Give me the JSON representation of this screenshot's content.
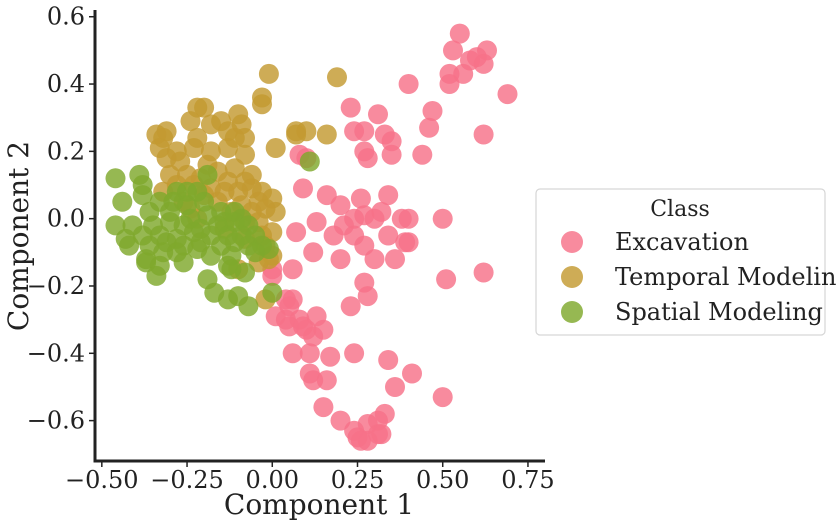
{
  "chart_data": {
    "type": "scatter",
    "title": "",
    "xlabel": "Component 1",
    "ylabel": "Component 2",
    "xlim": [
      -0.52,
      0.8
    ],
    "ylim": [
      -0.72,
      0.62
    ],
    "xticks": [
      -0.5,
      -0.25,
      0.0,
      0.25,
      0.5,
      0.75
    ],
    "xtick_labels": [
      "−0.50",
      "−0.25",
      "0.00",
      "0.25",
      "0.50",
      "0.75"
    ],
    "yticks": [
      -0.6,
      -0.4,
      -0.2,
      0.0,
      0.2,
      0.4,
      0.6
    ],
    "ytick_labels": [
      "−0.6",
      "−0.4",
      "−0.2",
      "0.0",
      "0.2",
      "0.4",
      "0.6"
    ],
    "grid": false,
    "legend": {
      "title": "Class",
      "placement": "right"
    },
    "series": [
      {
        "name": "Excavation",
        "color": "#f77189",
        "points": [
          [
            0.55,
            0.55
          ],
          [
            0.53,
            0.5
          ],
          [
            0.6,
            0.48
          ],
          [
            0.63,
            0.5
          ],
          [
            0.62,
            0.46
          ],
          [
            0.58,
            0.47
          ],
          [
            0.56,
            0.43
          ],
          [
            0.52,
            0.43
          ],
          [
            0.52,
            0.4
          ],
          [
            0.69,
            0.37
          ],
          [
            0.4,
            0.4
          ],
          [
            0.47,
            0.32
          ],
          [
            0.46,
            0.27
          ],
          [
            0.44,
            0.19
          ],
          [
            0.62,
            0.25
          ],
          [
            0.23,
            0.33
          ],
          [
            0.31,
            0.31
          ],
          [
            0.24,
            0.26
          ],
          [
            0.27,
            0.26
          ],
          [
            0.33,
            0.25
          ],
          [
            0.35,
            0.23
          ],
          [
            0.27,
            0.2
          ],
          [
            0.28,
            0.18
          ],
          [
            0.35,
            0.19
          ],
          [
            0.08,
            0.19
          ],
          [
            0.1,
            0.18
          ],
          [
            0.09,
            0.09
          ],
          [
            0.16,
            0.07
          ],
          [
            0.26,
            0.06
          ],
          [
            0.34,
            0.07
          ],
          [
            0.2,
            0.04
          ],
          [
            0.32,
            0.02
          ],
          [
            0.27,
            0.01
          ],
          [
            0.24,
            0.0
          ],
          [
            0.3,
            0.0
          ],
          [
            0.38,
            0.0
          ],
          [
            0.4,
            0.0
          ],
          [
            0.5,
            0.0
          ],
          [
            0.13,
            -0.01
          ],
          [
            0.21,
            -0.02
          ],
          [
            0.07,
            -0.04
          ],
          [
            0.18,
            -0.05
          ],
          [
            0.24,
            -0.05
          ],
          [
            0.34,
            -0.05
          ],
          [
            0.39,
            -0.07
          ],
          [
            0.4,
            -0.07
          ],
          [
            0.27,
            -0.08
          ],
          [
            0.12,
            -0.1
          ],
          [
            0.2,
            -0.12
          ],
          [
            0.3,
            -0.12
          ],
          [
            0.36,
            -0.12
          ],
          [
            0.0,
            -0.15
          ],
          [
            0.06,
            -0.15
          ],
          [
            0.0,
            -0.17
          ],
          [
            0.51,
            -0.18
          ],
          [
            0.62,
            -0.16
          ],
          [
            0.27,
            -0.19
          ],
          [
            0.28,
            -0.23
          ],
          [
            0.06,
            -0.24
          ],
          [
            0.04,
            -0.24
          ],
          [
            0.05,
            -0.26
          ],
          [
            0.23,
            -0.26
          ],
          [
            0.01,
            -0.29
          ],
          [
            0.04,
            -0.3
          ],
          [
            0.08,
            -0.3
          ],
          [
            0.05,
            -0.32
          ],
          [
            0.09,
            -0.32
          ],
          [
            0.1,
            -0.33
          ],
          [
            0.12,
            -0.35
          ],
          [
            0.15,
            -0.33
          ],
          [
            0.13,
            -0.29
          ],
          [
            0.06,
            -0.4
          ],
          [
            0.11,
            -0.4
          ],
          [
            0.17,
            -0.41
          ],
          [
            0.24,
            -0.4
          ],
          [
            0.34,
            -0.42
          ],
          [
            0.41,
            -0.46
          ],
          [
            0.11,
            -0.46
          ],
          [
            0.12,
            -0.48
          ],
          [
            0.16,
            -0.48
          ],
          [
            0.36,
            -0.5
          ],
          [
            0.5,
            -0.53
          ],
          [
            0.15,
            -0.56
          ],
          [
            0.2,
            -0.6
          ],
          [
            0.28,
            -0.61
          ],
          [
            0.31,
            -0.6
          ],
          [
            0.33,
            -0.58
          ],
          [
            0.24,
            -0.63
          ],
          [
            0.25,
            -0.65
          ],
          [
            0.28,
            -0.66
          ],
          [
            0.31,
            -0.64
          ],
          [
            0.32,
            -0.64
          ],
          [
            0.26,
            -0.66
          ]
        ]
      },
      {
        "name": "Temporal Modeling",
        "color": "#c39a31",
        "points": [
          [
            -0.01,
            0.43
          ],
          [
            0.19,
            0.42
          ],
          [
            -0.03,
            0.36
          ],
          [
            -0.03,
            0.34
          ],
          [
            -0.22,
            0.33
          ],
          [
            -0.2,
            0.33
          ],
          [
            -0.1,
            0.31
          ],
          [
            -0.15,
            0.29
          ],
          [
            -0.24,
            0.29
          ],
          [
            -0.18,
            0.28
          ],
          [
            -0.09,
            0.28
          ],
          [
            -0.13,
            0.26
          ],
          [
            -0.34,
            0.25
          ],
          [
            -0.31,
            0.26
          ],
          [
            -0.32,
            0.24
          ],
          [
            -0.22,
            0.24
          ],
          [
            -0.11,
            0.24
          ],
          [
            -0.08,
            0.24
          ],
          [
            0.07,
            0.25
          ],
          [
            0.07,
            0.26
          ],
          [
            0.1,
            0.26
          ],
          [
            0.16,
            0.25
          ],
          [
            -0.33,
            0.21
          ],
          [
            -0.28,
            0.2
          ],
          [
            -0.23,
            0.21
          ],
          [
            -0.18,
            0.2
          ],
          [
            -0.13,
            0.21
          ],
          [
            -0.08,
            0.19
          ],
          [
            0.01,
            0.21
          ],
          [
            -0.31,
            0.18
          ],
          [
            -0.27,
            0.17
          ],
          [
            -0.19,
            0.16
          ],
          [
            -0.16,
            0.14
          ],
          [
            -0.11,
            0.15
          ],
          [
            -0.3,
            0.13
          ],
          [
            -0.25,
            0.13
          ],
          [
            -0.21,
            0.12
          ],
          [
            -0.13,
            0.11
          ],
          [
            -0.08,
            0.11
          ],
          [
            -0.06,
            0.13
          ],
          [
            -0.32,
            0.08
          ],
          [
            -0.28,
            0.1
          ],
          [
            -0.23,
            0.1
          ],
          [
            -0.18,
            0.09
          ],
          [
            -0.14,
            0.08
          ],
          [
            -0.1,
            0.08
          ],
          [
            -0.06,
            0.09
          ],
          [
            -0.03,
            0.08
          ],
          [
            -0.2,
            0.07
          ],
          [
            -0.26,
            0.05
          ],
          [
            -0.16,
            0.05
          ],
          [
            -0.09,
            0.04
          ],
          [
            -0.04,
            0.05
          ],
          [
            0.0,
            0.06
          ],
          [
            -0.24,
            0.03
          ],
          [
            -0.12,
            0.02
          ],
          [
            -0.06,
            0.02
          ],
          [
            -0.02,
            0.03
          ],
          [
            0.01,
            0.02
          ],
          [
            -0.22,
            0.0
          ],
          [
            -0.08,
            -0.01
          ],
          [
            -0.04,
            -0.01
          ],
          [
            -0.14,
            -0.03
          ],
          [
            -0.03,
            -0.05
          ],
          [
            0.0,
            -0.04
          ],
          [
            -0.08,
            -0.06
          ],
          [
            -0.02,
            -0.08
          ],
          [
            0.0,
            -0.11
          ],
          [
            -0.04,
            -0.13
          ],
          [
            -0.01,
            -0.12
          ],
          [
            -0.02,
            -0.24
          ],
          [
            -0.1,
            -0.15
          ]
        ]
      },
      {
        "name": "Spatial Modeling",
        "color": "#7fa82c",
        "points": [
          [
            0.11,
            0.17
          ],
          [
            -0.46,
            0.12
          ],
          [
            -0.39,
            0.13
          ],
          [
            -0.38,
            0.1
          ],
          [
            -0.28,
            0.08
          ],
          [
            -0.25,
            0.08
          ],
          [
            -0.22,
            0.08
          ],
          [
            -0.19,
            0.13
          ],
          [
            -0.44,
            0.05
          ],
          [
            -0.38,
            0.07
          ],
          [
            -0.33,
            0.05
          ],
          [
            -0.29,
            0.05
          ],
          [
            -0.25,
            0.04
          ],
          [
            -0.2,
            0.05
          ],
          [
            -0.15,
            0.02
          ],
          [
            -0.11,
            0.02
          ],
          [
            -0.36,
            0.02
          ],
          [
            -0.3,
            0.02
          ],
          [
            -0.24,
            0.0
          ],
          [
            -0.19,
            0.01
          ],
          [
            -0.14,
            -0.01
          ],
          [
            -0.09,
            0.0
          ],
          [
            -0.46,
            -0.02
          ],
          [
            -0.41,
            -0.02
          ],
          [
            -0.35,
            -0.02
          ],
          [
            -0.3,
            -0.01
          ],
          [
            -0.26,
            -0.02
          ],
          [
            -0.21,
            -0.03
          ],
          [
            -0.16,
            -0.02
          ],
          [
            -0.11,
            -0.01
          ],
          [
            -0.07,
            -0.02
          ],
          [
            -0.43,
            -0.06
          ],
          [
            -0.38,
            -0.05
          ],
          [
            -0.33,
            -0.05
          ],
          [
            -0.28,
            -0.06
          ],
          [
            -0.23,
            -0.04
          ],
          [
            -0.18,
            -0.05
          ],
          [
            -0.13,
            -0.05
          ],
          [
            -0.09,
            -0.05
          ],
          [
            -0.05,
            -0.05
          ],
          [
            -0.42,
            -0.08
          ],
          [
            -0.36,
            -0.08
          ],
          [
            -0.31,
            -0.07
          ],
          [
            -0.26,
            -0.08
          ],
          [
            -0.21,
            -0.07
          ],
          [
            -0.15,
            -0.08
          ],
          [
            -0.11,
            -0.07
          ],
          [
            -0.07,
            -0.08
          ],
          [
            -0.03,
            -0.08
          ],
          [
            -0.37,
            -0.12
          ],
          [
            -0.32,
            -0.1
          ],
          [
            -0.28,
            -0.1
          ],
          [
            -0.22,
            -0.09
          ],
          [
            -0.18,
            -0.11
          ],
          [
            -0.12,
            -0.11
          ],
          [
            -0.05,
            -0.1
          ],
          [
            -0.01,
            -0.09
          ],
          [
            -0.37,
            -0.13
          ],
          [
            -0.33,
            -0.14
          ],
          [
            -0.26,
            -0.13
          ],
          [
            -0.13,
            -0.14
          ],
          [
            -0.08,
            -0.16
          ],
          [
            -0.34,
            -0.17
          ],
          [
            -0.19,
            -0.18
          ],
          [
            -0.12,
            -0.15
          ],
          [
            -0.17,
            -0.22
          ],
          [
            -0.13,
            -0.24
          ],
          [
            -0.1,
            -0.23
          ],
          [
            0.0,
            -0.22
          ],
          [
            -0.07,
            -0.26
          ]
        ]
      }
    ]
  }
}
